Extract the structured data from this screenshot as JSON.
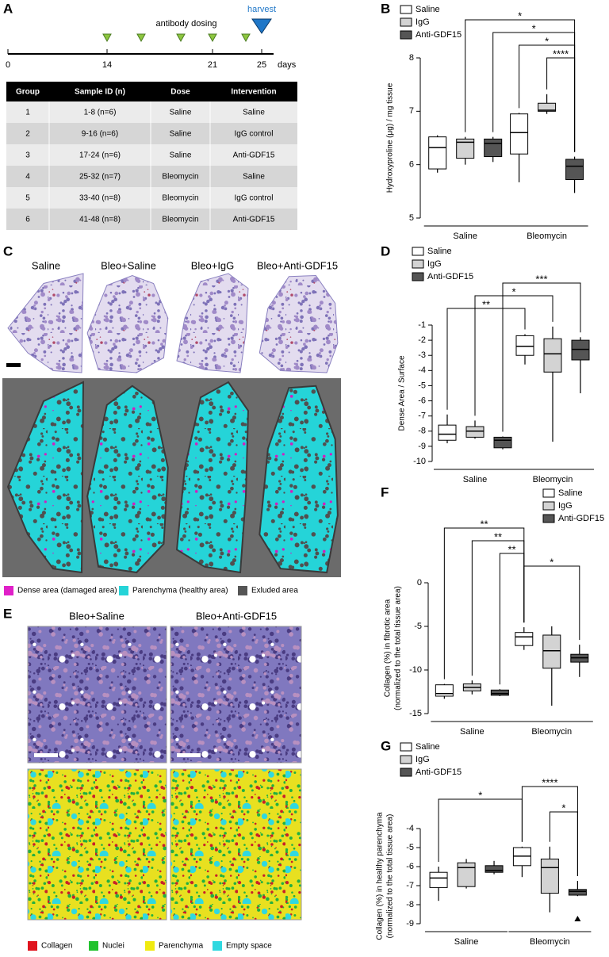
{
  "panel_labels": {
    "a": "A",
    "b": "B",
    "c": "C",
    "d": "D",
    "e": "E",
    "f": "F",
    "g": "G"
  },
  "timeline": {
    "ticks": [
      0,
      14,
      21,
      25
    ],
    "unit": "days",
    "dosing_label": "antibody dosing",
    "harvest_label": "harvest"
  },
  "table": {
    "header": [
      "Group",
      "Sample ID (n)",
      "Dose",
      "Intervention"
    ],
    "rows": [
      [
        1,
        "1-8 (n=6)",
        "Saline",
        "Saline"
      ],
      [
        2,
        "9-16 (n=6)",
        "Saline",
        "IgG control"
      ],
      [
        3,
        "17-24 (n=6)",
        "Saline",
        "Anti-GDF15"
      ],
      [
        4,
        "25-32 (n=7)",
        "Bleomycin",
        "Saline"
      ],
      [
        5,
        "33-40 (n=8)",
        "Bleomycin",
        "IgG control"
      ],
      [
        6,
        "41-48 (n=8)",
        "Bleomycin",
        "Anti-GDF15"
      ]
    ]
  },
  "histology_c": {
    "captions": [
      "Saline",
      "Bleo+Saline",
      "Bleo+IgG",
      "Bleo+Anti-GDF15"
    ],
    "legend": [
      "Dense area (damaged area)",
      "Parenchyma (healthy area)",
      "Exluded area"
    ]
  },
  "histology_e": {
    "captions": [
      "Bleo+Saline",
      "Bleo+Anti-GDF15"
    ],
    "legend": [
      "Collagen",
      "Nuclei",
      "Parenchyma",
      "Empty space"
    ]
  },
  "chart_data": [
    {
      "type": "box",
      "ylabel": [
        "Hydroxyproline (μg) / mg tissue"
      ],
      "categories": [
        "Saline",
        "Bleomycin"
      ],
      "series": [
        {
          "name": "Saline",
          "color": "#ffffff",
          "values": [
            [
              5.85,
              5.92,
              6.32,
              6.52,
              6.55
            ],
            [
              5.67,
              6.2,
              6.6,
              6.95,
              6.97
            ]
          ]
        },
        {
          "name": "IgG",
          "color": "#d3d3d3",
          "values": [
            [
              6.0,
              6.12,
              6.42,
              6.48,
              6.52
            ],
            [
              6.95,
              7.0,
              7.02,
              7.15,
              7.32
            ]
          ]
        },
        {
          "name": "Anti-GDF15",
          "color": "#555555",
          "values": [
            [
              6.05,
              6.15,
              6.4,
              6.48,
              6.52
            ],
            [
              5.47,
              5.72,
              5.97,
              6.1,
              6.15
            ]
          ]
        }
      ],
      "ylim": [
        5,
        8
      ],
      "yticks": [
        5,
        6,
        7,
        8
      ],
      "legend": "upper left",
      "annotations": [
        {
          "text": "*",
          "pair": [
            1,
            5
          ]
        },
        {
          "text": "*",
          "pair": [
            2,
            5
          ]
        },
        {
          "text": "*",
          "pair": [
            3,
            5
          ]
        },
        {
          "text": "****",
          "pair": [
            4,
            5
          ]
        }
      ]
    },
    {
      "type": "box",
      "ylabel": [
        "Dense Area / Surface"
      ],
      "categories": [
        "Saline",
        "Bleomycin"
      ],
      "series": [
        {
          "name": "Saline",
          "color": "#ffffff",
          "values": [
            [
              -8.8,
              -8.6,
              -8.2,
              -7.6,
              -6.9
            ],
            [
              -3.6,
              -3.0,
              -2.4,
              -1.7,
              -1.6
            ]
          ]
        },
        {
          "name": "IgG",
          "color": "#d3d3d3",
          "values": [
            [
              -8.5,
              -8.4,
              -8.0,
              -7.7,
              -7.3
            ],
            [
              -8.7,
              -4.1,
              -2.9,
              -1.9,
              -1.1
            ]
          ]
        },
        {
          "name": "Anti-GDF15",
          "color": "#555555",
          "values": [
            [
              -9.2,
              -9.1,
              -8.6,
              -8.4,
              -8.35
            ],
            [
              -5.5,
              -3.3,
              -2.6,
              -2.0,
              -1.8
            ]
          ]
        }
      ],
      "ylim": [
        -10,
        -1
      ],
      "yticks": [
        -10,
        -9,
        -8,
        -7,
        -6,
        -5,
        -4,
        -3,
        -2,
        -1
      ],
      "legend": "upper left",
      "annotations": [
        {
          "text": "***",
          "pair": [
            2,
            5
          ]
        },
        {
          "text": "*",
          "pair": [
            1,
            4
          ]
        },
        {
          "text": "**",
          "pair": [
            0,
            3
          ]
        }
      ]
    },
    {
      "type": "box",
      "ylabel": [
        "Collagen (%) in fibrotic area",
        "(normalized to the total tissue area)"
      ],
      "categories": [
        "Saline",
        "Bleomycin"
      ],
      "series": [
        {
          "name": "Saline",
          "color": "#ffffff",
          "values": [
            [
              -13.3,
              -13.0,
              -12.7,
              -11.7,
              -11.6
            ],
            [
              -7.7,
              -7.2,
              -6.2,
              -5.7,
              -5.1
            ]
          ]
        },
        {
          "name": "IgG",
          "color": "#d3d3d3",
          "values": [
            [
              -12.8,
              -12.4,
              -12.0,
              -11.6,
              -11.2
            ],
            [
              -14.1,
              -9.8,
              -7.8,
              -6.0,
              -5.0
            ]
          ]
        },
        {
          "name": "Anti-GDF15",
          "color": "#555555",
          "values": [
            [
              -13.0,
              -12.9,
              -12.7,
              -12.3,
              -12.2
            ],
            [
              -10.8,
              -9.1,
              -8.6,
              -8.2,
              -7.1
            ]
          ]
        }
      ],
      "ylim": [
        -15,
        0
      ],
      "yticks": [
        -15,
        -10,
        -5,
        0
      ],
      "legend": "upper right",
      "annotations": [
        {
          "text": "**",
          "pair": [
            0,
            3
          ]
        },
        {
          "text": "**",
          "pair": [
            1,
            3
          ]
        },
        {
          "text": "**",
          "pair": [
            2,
            3
          ]
        },
        {
          "text": "*",
          "pair": [
            3,
            5
          ]
        }
      ]
    },
    {
      "type": "box",
      "ylabel": [
        "Collagen (%) in healthy parenchyma",
        "(normalized to the total tissue area)"
      ],
      "categories": [
        "Saline",
        "Bleomycin"
      ],
      "series": [
        {
          "name": "Saline",
          "color": "#ffffff",
          "values": [
            [
              -7.8,
              -7.1,
              -6.6,
              -6.3,
              -6.0
            ],
            [
              -6.55,
              -5.95,
              -5.45,
              -5.0,
              -4.95
            ]
          ]
        },
        {
          "name": "IgG",
          "color": "#d3d3d3",
          "values": [
            [
              -7.15,
              -7.05,
              -6.05,
              -5.8,
              -5.6
            ],
            [
              -8.4,
              -7.4,
              -6.05,
              -5.6,
              -4.95
            ]
          ]
        },
        {
          "name": "Anti-GDF15",
          "color": "#555555",
          "values": [
            [
              -6.4,
              -6.3,
              -6.2,
              -5.95,
              -5.7
            ],
            [
              -7.55,
              -7.5,
              -7.3,
              -7.2,
              -6.75
            ]
          ],
          "outliers": [
            [],
            [
              -8.75
            ]
          ]
        }
      ],
      "ylim": [
        -9,
        -4
      ],
      "yticks": [
        -9,
        -8,
        -7,
        -6,
        -5,
        -4
      ],
      "legend": "upper left",
      "annotations": [
        {
          "text": "****",
          "pair": [
            3,
            5
          ]
        },
        {
          "text": "*",
          "pair": [
            0,
            3
          ]
        },
        {
          "text": "*",
          "pair": [
            4,
            5
          ]
        }
      ]
    }
  ]
}
